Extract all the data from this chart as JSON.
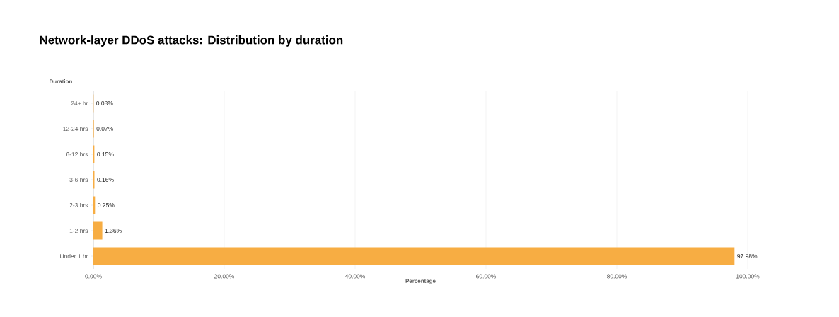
{
  "chart_data": {
    "type": "bar",
    "orientation": "horizontal",
    "title": "Network-layer DDoS attacks: Distribution by duration",
    "ylabel": "Duration",
    "xlabel": "Percentage",
    "categories": [
      "24+ hr",
      "12-24 hrs",
      "6-12 hrs",
      "3-6 hrs",
      "2-3 hrs",
      "1-2 hrs",
      "Under 1 hr"
    ],
    "values": [
      0.03,
      0.07,
      0.15,
      0.16,
      0.25,
      1.36,
      97.98
    ],
    "value_labels": [
      "0.03%",
      "0.07%",
      "0.15%",
      "0.16%",
      "0.25%",
      "1.36%",
      "97.98%"
    ],
    "color": "#f7ad43",
    "xlim": [
      0,
      100
    ],
    "xticks": [
      {
        "value": 0,
        "label": "0.00%"
      },
      {
        "value": 20,
        "label": "20.00%"
      },
      {
        "value": 40,
        "label": "40.00%"
      },
      {
        "value": 60,
        "label": "60.00%"
      },
      {
        "value": 80,
        "label": "80.00%"
      },
      {
        "value": 100,
        "label": "100.00%"
      }
    ],
    "grid": "x"
  }
}
